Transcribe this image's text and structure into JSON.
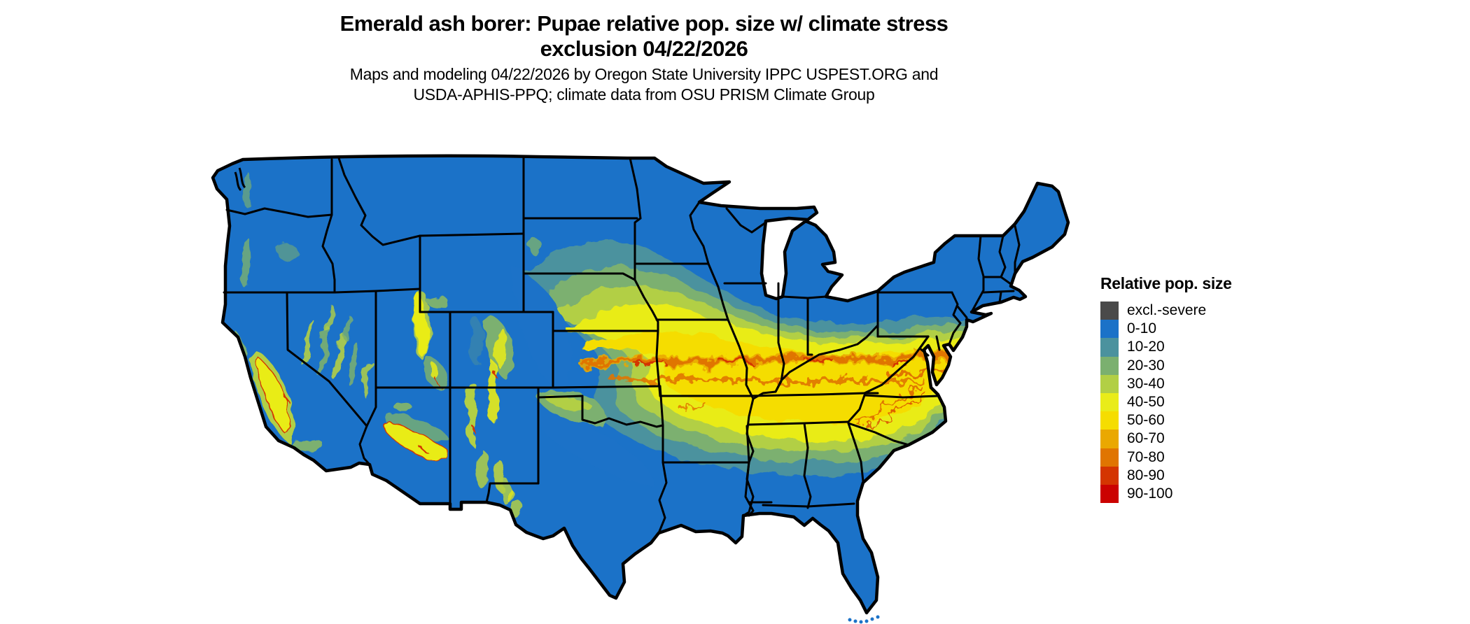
{
  "title": {
    "line1": "Emerald ash borer: Pupae relative pop. size w/ climate stress",
    "line2": "exclusion 04/22/2026"
  },
  "subtitle": {
    "line1": "Maps and modeling 04/22/2026 by Oregon State University IPPC USPEST.ORG and",
    "line2": "USDA-APHIS-PPQ; climate data from OSU PRISM Climate Group"
  },
  "legend": {
    "title": "Relative pop. size",
    "items": [
      {
        "label": "excl.-severe",
        "color": "#4a4a4a"
      },
      {
        "label": "0-10",
        "color": "#1b72c8"
      },
      {
        "label": "10-20",
        "color": "#4b929e"
      },
      {
        "label": "20-30",
        "color": "#7bb06f"
      },
      {
        "label": "30-40",
        "color": "#b2cf45"
      },
      {
        "label": "40-50",
        "color": "#e9ec19"
      },
      {
        "label": "50-60",
        "color": "#f5dd00"
      },
      {
        "label": "60-70",
        "color": "#eaa800"
      },
      {
        "label": "70-80",
        "color": "#e07500"
      },
      {
        "label": "80-90",
        "color": "#d43500"
      },
      {
        "label": "90-100",
        "color": "#cb0200"
      }
    ]
  },
  "map": {
    "region": "Contiguous United States",
    "content": "Choropleth raster of emerald ash borer pupae relative population size; low (blue) in the north, mountain west, Texas and the Gulf/Florida south, rising through teal, green and yellow to an orange 60-90 core band across Kansas, Missouri, southern Illinois/Indiana, Kentucky and Virginia",
    "base_color": "#1b72c8",
    "border_color": "#000000",
    "background_color": "#ffffff"
  }
}
